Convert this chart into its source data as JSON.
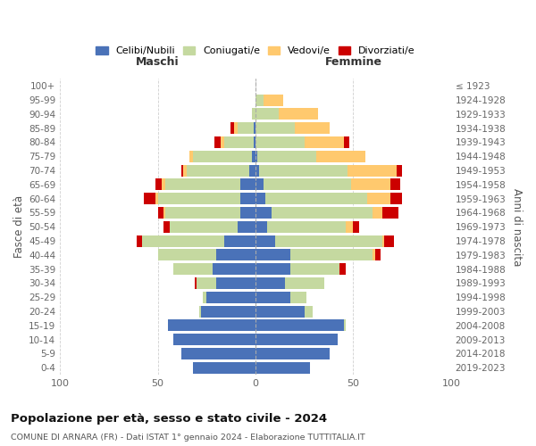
{
  "age_groups": [
    "0-4",
    "5-9",
    "10-14",
    "15-19",
    "20-24",
    "25-29",
    "30-34",
    "35-39",
    "40-44",
    "45-49",
    "50-54",
    "55-59",
    "60-64",
    "65-69",
    "70-74",
    "75-79",
    "80-84",
    "85-89",
    "90-94",
    "95-99",
    "100+"
  ],
  "birth_years": [
    "2019-2023",
    "2014-2018",
    "2009-2013",
    "2004-2008",
    "1999-2003",
    "1994-1998",
    "1989-1993",
    "1984-1988",
    "1979-1983",
    "1974-1978",
    "1969-1973",
    "1964-1968",
    "1959-1963",
    "1954-1958",
    "1949-1953",
    "1944-1948",
    "1939-1943",
    "1934-1938",
    "1929-1933",
    "1924-1928",
    "≤ 1923"
  ],
  "maschi": {
    "celibi": [
      32,
      38,
      42,
      45,
      28,
      25,
      20,
      22,
      20,
      16,
      9,
      8,
      8,
      8,
      3,
      2,
      1,
      1,
      0,
      0,
      0
    ],
    "coniugati": [
      0,
      0,
      0,
      0,
      1,
      2,
      10,
      20,
      30,
      42,
      35,
      38,
      42,
      38,
      32,
      30,
      15,
      8,
      2,
      0,
      0
    ],
    "vedovi": [
      0,
      0,
      0,
      0,
      0,
      0,
      0,
      0,
      0,
      0,
      0,
      1,
      1,
      2,
      2,
      2,
      2,
      2,
      0,
      0,
      0
    ],
    "divorziati": [
      0,
      0,
      0,
      0,
      0,
      0,
      1,
      0,
      0,
      3,
      3,
      3,
      6,
      3,
      1,
      0,
      3,
      2,
      0,
      0,
      0
    ]
  },
  "femmine": {
    "nubili": [
      28,
      38,
      42,
      45,
      25,
      18,
      15,
      18,
      18,
      10,
      6,
      8,
      5,
      4,
      2,
      1,
      0,
      0,
      0,
      0,
      0
    ],
    "coniugate": [
      0,
      0,
      0,
      1,
      4,
      8,
      20,
      25,
      42,
      55,
      40,
      52,
      52,
      45,
      45,
      30,
      25,
      20,
      12,
      4,
      0
    ],
    "vedove": [
      0,
      0,
      0,
      0,
      0,
      0,
      0,
      0,
      1,
      1,
      4,
      5,
      12,
      20,
      25,
      25,
      20,
      18,
      20,
      10,
      0
    ],
    "divorziate": [
      0,
      0,
      0,
      0,
      0,
      0,
      0,
      3,
      3,
      5,
      3,
      8,
      6,
      5,
      3,
      0,
      3,
      0,
      0,
      0,
      0
    ]
  },
  "colors": {
    "celibi": "#4a72b8",
    "coniugati": "#c5d9a0",
    "vedovi": "#ffc96e",
    "divorziati": "#cc0000"
  },
  "title": "Popolazione per età, sesso e stato civile - 2024",
  "subtitle": "COMUNE DI ARNARA (FR) - Dati ISTAT 1° gennaio 2024 - Elaborazione TUTTITALIA.IT",
  "xlabel_left": "Maschi",
  "xlabel_right": "Femmine",
  "ylabel_left": "Fasce di età",
  "ylabel_right": "Anni di nascita",
  "xlim": 100,
  "legend_labels": [
    "Celibi/Nubili",
    "Coniugati/e",
    "Vedovi/e",
    "Divorziati/e"
  ],
  "background_color": "#ffffff"
}
